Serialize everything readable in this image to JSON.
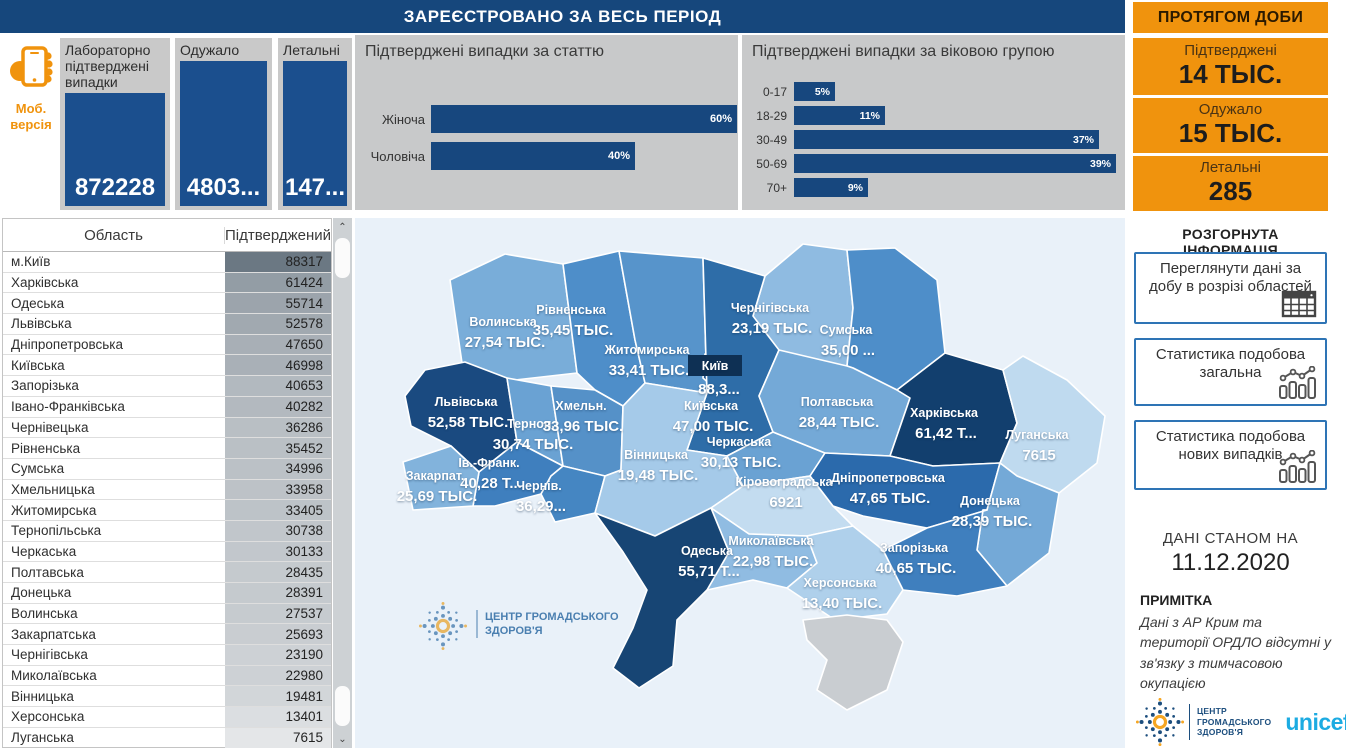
{
  "header": {
    "title": "ЗАРЕЄСТРОВАНО ЗА ВЕСЬ ПЕРІОД",
    "daily_title": "ПРОТЯГОМ ДОБИ"
  },
  "mobile": {
    "label": "Моб. версія"
  },
  "kpi_cards": [
    {
      "title": "Лабораторно підтверджені випадки",
      "value": "872228"
    },
    {
      "title": "Одужало",
      "value": "4803..."
    },
    {
      "title": "Летальні",
      "value": "147..."
    }
  ],
  "chart_data": [
    {
      "type": "bar",
      "orientation": "horizontal",
      "title": "Підтверджені випадки за статтю",
      "categories": [
        "Жіноча",
        "Чоловіча"
      ],
      "values": [
        60,
        40
      ],
      "unit": "%",
      "xlim": [
        0,
        60
      ],
      "bar_color": "#17477E",
      "panel_bg": "#C8C9CA",
      "value_labels_inside": true
    },
    {
      "type": "bar",
      "orientation": "horizontal",
      "title": "Підтверджені випадки за віковою групою",
      "categories": [
        "0-17",
        "18-29",
        "30-49",
        "50-69",
        "70+"
      ],
      "values": [
        5,
        11,
        37,
        39,
        9
      ],
      "unit": "%",
      "xlim": [
        0,
        39
      ],
      "bar_color": "#17477E",
      "panel_bg": "#C8C9CA",
      "value_labels_inside": true
    }
  ],
  "daily_cards": [
    {
      "label": "Підтверджені",
      "value": "14 ТЫС."
    },
    {
      "label": "Одужало",
      "value": "15 ТЫС."
    },
    {
      "label": "Летальні",
      "value": "285"
    }
  ],
  "info_panel": {
    "title": "РОЗГОРНУТА ІНФОРМАЦІЯ",
    "buttons": [
      {
        "label": "Переглянути дані за добу в розрізі областей",
        "icon": "table-icon"
      },
      {
        "label": "Статистика подобова загальна",
        "icon": "combo-chart-icon"
      },
      {
        "label": "Статистика подобова нових випадків",
        "icon": "combo-chart-icon"
      }
    ]
  },
  "data_as_of": {
    "label": "ДАНІ СТАНОМ НА",
    "date": "11.12.2020"
  },
  "note": {
    "title": "ПРИМІТКА",
    "text": "Дані з АР Крим та території ОРДЛО відсутні у зв'язку з тимчасовою окупацією"
  },
  "logos": {
    "phc_name": "ЦЕНТР ГРОМАДСЬКОГО ЗДОРОВ'Я",
    "unicef": "unicef"
  },
  "table": {
    "columns": [
      "Область",
      "Підтверджений"
    ],
    "value_bg_min": "#E4E6E8",
    "value_bg_max": "#6B7883",
    "rows": [
      [
        "м.Київ",
        88317
      ],
      [
        "Харківська",
        61424
      ],
      [
        "Одеська",
        55714
      ],
      [
        "Львівська",
        52578
      ],
      [
        "Дніпропетровська",
        47650
      ],
      [
        "Київська",
        46998
      ],
      [
        "Запорізька",
        40653
      ],
      [
        "Івано-Франківська",
        40282
      ],
      [
        "Чернівецька",
        36286
      ],
      [
        "Рівненська",
        35452
      ],
      [
        "Сумська",
        34996
      ],
      [
        "Хмельницька",
        33958
      ],
      [
        "Житомирська",
        33405
      ],
      [
        "Тернопільська",
        30738
      ],
      [
        "Черкаська",
        30133
      ],
      [
        "Полтавська",
        28435
      ],
      [
        "Донецька",
        28391
      ],
      [
        "Волинська",
        27537
      ],
      [
        "Закарпатська",
        25693
      ],
      [
        "Чернігівська",
        23190
      ],
      [
        "Миколаївська",
        22980
      ],
      [
        "Вінницька",
        19481
      ],
      [
        "Херсонська",
        13401
      ],
      [
        "Луганська",
        7615
      ]
    ]
  },
  "map": {
    "sea_color": "#E9F1F9",
    "regions": [
      {
        "id": "volyn",
        "name": "Волинська",
        "value": "27,54 ТЫС.",
        "color": "#79ADD9"
      },
      {
        "id": "rivne",
        "name": "Рівненська",
        "value": "35,45 ТЫС.",
        "color": "#4E8EC9"
      },
      {
        "id": "zhytomyr",
        "name": "Житомирська",
        "value": "33,41 ТЫС.",
        "color": "#5794CB"
      },
      {
        "id": "chernihiv",
        "name": "Чернігівська",
        "value": "23,19 ТЫС.",
        "color": "#8FBBE1"
      },
      {
        "id": "sumy",
        "name": "Сумська",
        "value": "35,00 ...",
        "color": "#4E8EC9"
      },
      {
        "id": "kyiv-city",
        "name": "Київ",
        "value": "88,3...",
        "color": "#1D5390"
      },
      {
        "id": "kyivska",
        "name": "Київська",
        "value": "47,00 ТЫС.",
        "color": "#2E6DA8"
      },
      {
        "id": "lviv",
        "name": "Львівська",
        "value": "52,58 ТЫС.",
        "color": "#1A4A80"
      },
      {
        "id": "ternopil",
        "name": "Терноп.",
        "value": "30,74 ТЫС.",
        "color": "#6AA2D3"
      },
      {
        "id": "khmelnytskyi",
        "name": "Хмельн.",
        "value": "33,96 ТЫС.",
        "color": "#5591C8"
      },
      {
        "id": "ivano-frankivsk",
        "name": "Ів.-Франк.",
        "value": "40,28 Т...",
        "color": "#3F7FBE"
      },
      {
        "id": "zakarpattia",
        "name": "Закарпат.",
        "value": "25,69 ТЫС.",
        "color": "#82B3DC"
      },
      {
        "id": "chernivtsi",
        "name": "Чернів.",
        "value": "36,29...",
        "color": "#4586C2"
      },
      {
        "id": "vinnytsia",
        "name": "Вінницька",
        "value": "19,48 ТЫС.",
        "color": "#A5CAE9"
      },
      {
        "id": "cherkasy",
        "name": "Черкаська",
        "value": "30,13 ТЫС.",
        "color": "#6AA2D3"
      },
      {
        "id": "poltava",
        "name": "Полтавська",
        "value": "28,44 ТЫС.",
        "color": "#74A9D7"
      },
      {
        "id": "kharkiv",
        "name": "Харківська",
        "value": "61,42 Т...",
        "color": "#123F6E"
      },
      {
        "id": "luhansk",
        "name": "Луганська",
        "value": "7615",
        "color": "#BFDAEF"
      },
      {
        "id": "kirovohrad",
        "name": "Кіровоградська",
        "value": "6921",
        "color": "#C3DCF0"
      },
      {
        "id": "dnipro",
        "name": "Дніпропетровська",
        "value": "47,65 ТЫС.",
        "color": "#2B6AAC"
      },
      {
        "id": "donetsk",
        "name": "Донецька",
        "value": "28,39 ТЫС.",
        "color": "#74A9D7"
      },
      {
        "id": "zaporizhzhia",
        "name": "Запорізька",
        "value": "40,65 ТЫС.",
        "color": "#3F7FBE"
      },
      {
        "id": "mykolaiv",
        "name": "Миколаївська",
        "value": "22,98 ТЫС.",
        "color": "#90BCE2"
      },
      {
        "id": "odesa",
        "name": "Одеська",
        "value": "55,71 Т...",
        "color": "#174574"
      },
      {
        "id": "kherson",
        "name": "Херсонська",
        "value": "13,40 ТЫС.",
        "color": "#AFD0EB"
      },
      {
        "id": "crimea",
        "name": "",
        "value": "",
        "color": "#C9CDD1"
      }
    ]
  }
}
